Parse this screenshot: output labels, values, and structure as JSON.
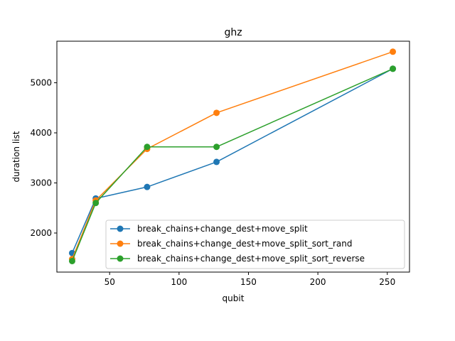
{
  "chart_data": {
    "type": "line",
    "title": "ghz",
    "xlabel": "qubit",
    "ylabel": "duration list",
    "xlim": [
      12,
      266
    ],
    "ylim": [
      1220,
      5830
    ],
    "xticks": [
      50,
      100,
      150,
      200,
      250
    ],
    "yticks": [
      2000,
      3000,
      4000,
      5000
    ],
    "grid": false,
    "legend_position": "lower-right",
    "x": [
      23,
      40,
      77,
      127,
      254
    ],
    "series": [
      {
        "name": "break_chains+change_dest+move_split",
        "color": "#1f77b4",
        "values": [
          1600,
          2690,
          2920,
          3420,
          5280
        ]
      },
      {
        "name": "break_chains+change_dest+move_split_sort_rand",
        "color": "#ff7f0e",
        "values": [
          1480,
          2650,
          3680,
          4400,
          5620
        ]
      },
      {
        "name": "break_chains+change_dest+move_split_sort_reverse",
        "color": "#2ca02c",
        "values": [
          1440,
          2600,
          3720,
          3720,
          5280
        ]
      }
    ]
  }
}
